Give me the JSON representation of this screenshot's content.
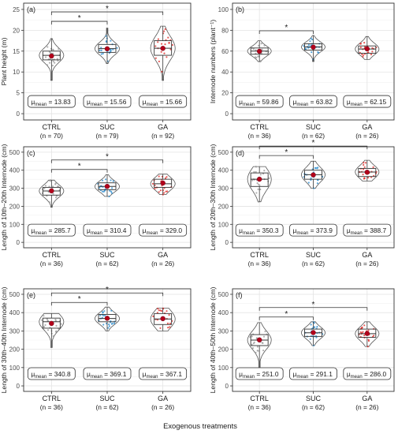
{
  "x_axis_title": "Exogenous treatments",
  "colors": {
    "CTRL": "#9e9e9e",
    "SUC": "#2f8fd0",
    "GA": "#e0312d",
    "mean_marker": "#b3001b"
  },
  "chart_data": [
    {
      "type": "violin",
      "panel_label": "(a)",
      "ylabel": "Plant height (m)",
      "ylim": [
        0,
        25
      ],
      "yticks": [
        0,
        5,
        10,
        15,
        20,
        25
      ],
      "grid": true,
      "categories": [
        "CTRL",
        "SUC",
        "GA"
      ],
      "n_labels": [
        "(n = 70)",
        "(n = 79)",
        "(n = 92)"
      ],
      "means": [
        13.83,
        15.56,
        15.66
      ],
      "mean_labels": [
        "13.83",
        "15.56",
        "15.66"
      ],
      "box": [
        {
          "q1": 12.9,
          "median": 14.0,
          "q3": 15.0,
          "min": 8.0,
          "max": 18.0
        },
        {
          "q1": 14.7,
          "median": 15.6,
          "q3": 16.6,
          "min": 12.0,
          "max": 20.5
        },
        {
          "q1": 14.0,
          "median": 15.7,
          "q3": 17.5,
          "min": 8.0,
          "max": 21.0
        }
      ],
      "significance": [
        {
          "from": "CTRL",
          "to": "SUC",
          "label": "*"
        },
        {
          "from": "CTRL",
          "to": "GA",
          "label": "*"
        }
      ]
    },
    {
      "type": "violin",
      "panel_label": "(b)",
      "ylabel": "Internode numbers (plant⁻¹)",
      "ylim": [
        0,
        100
      ],
      "yticks": [
        0,
        20,
        40,
        60,
        80,
        100
      ],
      "grid": true,
      "categories": [
        "CTRL",
        "SUC",
        "GA"
      ],
      "n_labels": [
        "(n = 36)",
        "(n = 62)",
        "(n = 26)"
      ],
      "means": [
        59.86,
        63.82,
        62.15
      ],
      "mean_labels": [
        "59.86",
        "63.82",
        "62.15"
      ],
      "box": [
        {
          "q1": 57,
          "median": 60,
          "q3": 63,
          "min": 50,
          "max": 70
        },
        {
          "q1": 61,
          "median": 64,
          "q3": 67,
          "min": 50,
          "max": 75
        },
        {
          "q1": 58,
          "median": 62,
          "q3": 65,
          "min": 52,
          "max": 74
        }
      ],
      "significance": [
        {
          "from": "CTRL",
          "to": "SUC",
          "label": "*"
        }
      ]
    },
    {
      "type": "violin",
      "panel_label": "(c)",
      "ylabel": "Length of 10th–20th Internode (cm)",
      "ylim": [
        0,
        500
      ],
      "yticks": [
        0,
        100,
        200,
        300,
        400,
        500
      ],
      "grid": true,
      "categories": [
        "CTRL",
        "SUC",
        "GA"
      ],
      "n_labels": [
        "(n = 36)",
        "(n = 62)",
        "(n = 26)"
      ],
      "means": [
        285.7,
        310.4,
        329.0
      ],
      "mean_labels": [
        "285.7",
        "310.4",
        "329.0"
      ],
      "box": [
        {
          "q1": 262,
          "median": 285,
          "q3": 305,
          "min": 195,
          "max": 345
        },
        {
          "q1": 292,
          "median": 310,
          "q3": 330,
          "min": 255,
          "max": 375
        },
        {
          "q1": 305,
          "median": 325,
          "q3": 350,
          "min": 265,
          "max": 378
        }
      ],
      "significance": [
        {
          "from": "CTRL",
          "to": "SUC",
          "label": "*"
        },
        {
          "from": "CTRL",
          "to": "GA",
          "label": "*"
        }
      ]
    },
    {
      "type": "violin",
      "panel_label": "(d)",
      "ylabel": "Length of 20th–30th Internode (cm)",
      "ylim": [
        0,
        500
      ],
      "yticks": [
        0,
        100,
        200,
        300,
        400,
        500
      ],
      "grid": true,
      "categories": [
        "CTRL",
        "SUC",
        "GA"
      ],
      "n_labels": [
        "(n = 36)",
        "(n = 62)",
        "(n = 26)"
      ],
      "means": [
        350.3,
        373.9,
        388.7
      ],
      "mean_labels": [
        "350.3",
        "373.9",
        "388.7"
      ],
      "box": [
        {
          "q1": 310,
          "median": 350,
          "q3": 385,
          "min": 225,
          "max": 420
        },
        {
          "q1": 350,
          "median": 375,
          "q3": 400,
          "min": 300,
          "max": 450
        },
        {
          "q1": 365,
          "median": 390,
          "q3": 410,
          "min": 340,
          "max": 455
        }
      ],
      "significance": [
        {
          "from": "CTRL",
          "to": "SUC",
          "label": "*"
        },
        {
          "from": "CTRL",
          "to": "GA",
          "label": "*"
        }
      ]
    },
    {
      "type": "violin",
      "panel_label": "(e)",
      "ylabel": "Length of 30th–40th Internode (cm)",
      "ylim": [
        0,
        500
      ],
      "yticks": [
        0,
        100,
        200,
        300,
        400,
        500
      ],
      "grid": true,
      "categories": [
        "CTRL",
        "SUC",
        "GA"
      ],
      "n_labels": [
        "(n = 36)",
        "(n = 62)",
        "(n = 26)"
      ],
      "means": [
        340.8,
        369.1,
        367.1
      ],
      "mean_labels": [
        "340.8",
        "369.1",
        "367.1"
      ],
      "box": [
        {
          "q1": 315,
          "median": 350,
          "q3": 370,
          "min": 210,
          "max": 395
        },
        {
          "q1": 350,
          "median": 368,
          "q3": 390,
          "min": 300,
          "max": 430
        },
        {
          "q1": 335,
          "median": 365,
          "q3": 395,
          "min": 300,
          "max": 425
        }
      ],
      "significance": [
        {
          "from": "CTRL",
          "to": "SUC",
          "label": "*"
        },
        {
          "from": "CTRL",
          "to": "GA",
          "label": "*"
        }
      ]
    },
    {
      "type": "violin",
      "panel_label": "(f)",
      "ylabel": "Length of 40th–50th Internode (cm)",
      "ylim": [
        0,
        500
      ],
      "yticks": [
        0,
        100,
        200,
        300,
        400,
        500
      ],
      "grid": true,
      "categories": [
        "CTRL",
        "SUC",
        "GA"
      ],
      "n_labels": [
        "(n = 36)",
        "(n = 62)",
        "(n = 26)"
      ],
      "means": [
        251.0,
        291.1,
        286.0
      ],
      "mean_labels": [
        "251.0",
        "291.1",
        "286.0"
      ],
      "box": [
        {
          "q1": 220,
          "median": 250,
          "q3": 280,
          "min": 80,
          "max": 345
        },
        {
          "q1": 270,
          "median": 290,
          "q3": 310,
          "min": 220,
          "max": 350
        },
        {
          "q1": 265,
          "median": 285,
          "q3": 310,
          "min": 215,
          "max": 350
        }
      ],
      "significance": [
        {
          "from": "CTRL",
          "to": "SUC",
          "label": "*"
        },
        {
          "from": "CTRL",
          "to": "GA",
          "label": "*"
        }
      ]
    }
  ]
}
